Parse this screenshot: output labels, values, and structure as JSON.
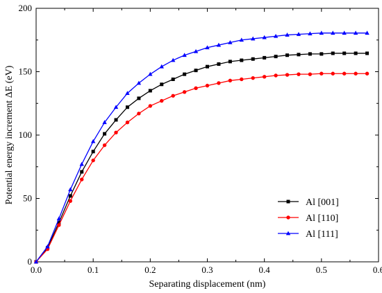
{
  "chart_data": {
    "type": "line",
    "xlabel": "Separating displacement (nm)",
    "ylabel": "Potential energy increment ΔE (eV)",
    "xlim": [
      0.0,
      0.6
    ],
    "ylim": [
      0,
      200
    ],
    "xticks": [
      "0.0",
      "0.1",
      "0.2",
      "0.3",
      "0.4",
      "0.5",
      "0.6"
    ],
    "yticks": [
      "0",
      "50",
      "100",
      "150",
      "200"
    ],
    "legend_position": "lower-right",
    "series": [
      {
        "name": "Al [001]",
        "color": "#000000",
        "marker": "square",
        "x": [
          0.0,
          0.02,
          0.04,
          0.06,
          0.08,
          0.1,
          0.12,
          0.14,
          0.16,
          0.18,
          0.2,
          0.22,
          0.24,
          0.26,
          0.28,
          0.3,
          0.32,
          0.34,
          0.36,
          0.38,
          0.4,
          0.42,
          0.44,
          0.46,
          0.48,
          0.5,
          0.52,
          0.54,
          0.56,
          0.58
        ],
        "y": [
          0,
          11,
          31,
          52,
          71,
          87,
          101,
          112,
          122,
          129,
          135,
          140,
          144,
          148,
          151,
          154,
          156,
          158,
          159,
          160,
          161,
          162,
          163,
          163.5,
          164,
          164,
          164.5,
          164.5,
          164.5,
          164.5
        ]
      },
      {
        "name": "Al [110]",
        "color": "#ff0000",
        "marker": "circle",
        "x": [
          0.0,
          0.02,
          0.04,
          0.06,
          0.08,
          0.1,
          0.12,
          0.14,
          0.16,
          0.18,
          0.2,
          0.22,
          0.24,
          0.26,
          0.28,
          0.3,
          0.32,
          0.34,
          0.36,
          0.38,
          0.4,
          0.42,
          0.44,
          0.46,
          0.48,
          0.5,
          0.52,
          0.54,
          0.56,
          0.58
        ],
        "y": [
          0,
          10,
          29,
          48,
          65,
          80,
          92,
          102,
          110,
          117,
          123,
          127,
          131,
          134,
          137,
          139,
          141,
          143,
          144,
          145,
          146,
          147,
          147.5,
          148,
          148,
          148.5,
          148.5,
          148.5,
          148.5,
          148.5
        ]
      },
      {
        "name": "Al [111]",
        "color": "#0000ff",
        "marker": "triangle",
        "x": [
          0.0,
          0.02,
          0.04,
          0.06,
          0.08,
          0.1,
          0.12,
          0.14,
          0.16,
          0.18,
          0.2,
          0.22,
          0.24,
          0.26,
          0.28,
          0.3,
          0.32,
          0.34,
          0.36,
          0.38,
          0.4,
          0.42,
          0.44,
          0.46,
          0.48,
          0.5,
          0.52,
          0.54,
          0.56,
          0.58
        ],
        "y": [
          0,
          12,
          34,
          57,
          77,
          95,
          110,
          122,
          133,
          141,
          148,
          154,
          159,
          163,
          166,
          169,
          171,
          173,
          175,
          176,
          177,
          178,
          179,
          179.5,
          180,
          180.5,
          180.5,
          180.5,
          180.5,
          180.5
        ]
      }
    ]
  }
}
